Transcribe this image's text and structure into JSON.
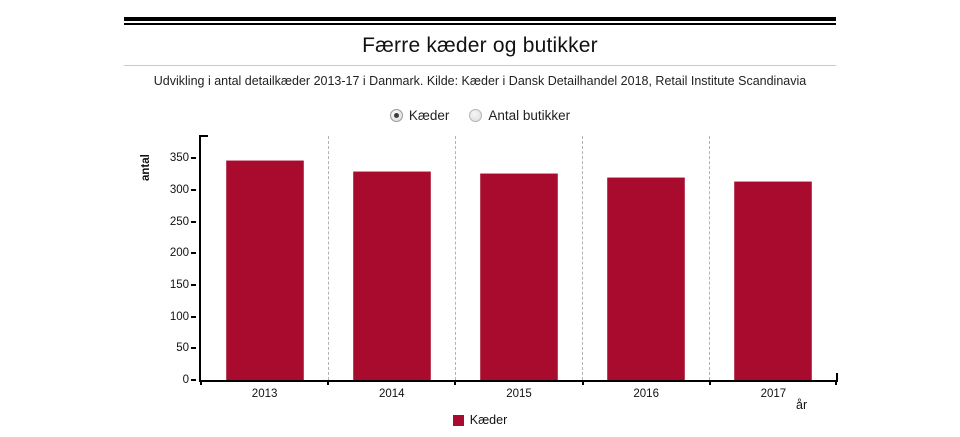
{
  "header": {
    "title": "Færre kæder og butikker",
    "subtitle": "Udvikling i antal detailkæder 2013-17 i Danmark. Kilde: Kæder i Dansk Detailhandel 2018, Retail Institute Scandinavia"
  },
  "controls": {
    "options": [
      {
        "label": "Kæder",
        "selected": true
      },
      {
        "label": "Antal butikker",
        "selected": false
      }
    ]
  },
  "chart_data": {
    "type": "bar",
    "categories": [
      "2013",
      "2014",
      "2015",
      "2016",
      "2017"
    ],
    "series": [
      {
        "name": "Kæder",
        "values": [
          347,
          330,
          326,
          320,
          314
        ]
      }
    ],
    "title": "Færre kæder og butikker",
    "xlabel": "år",
    "ylabel": "antal",
    "ylim": [
      0,
      385
    ],
    "yticks": [
      0,
      50,
      100,
      150,
      200,
      250,
      300,
      350
    ],
    "grid": "vertical-dashed",
    "legend_position": "bottom",
    "bar_color": "#a80b2d"
  }
}
